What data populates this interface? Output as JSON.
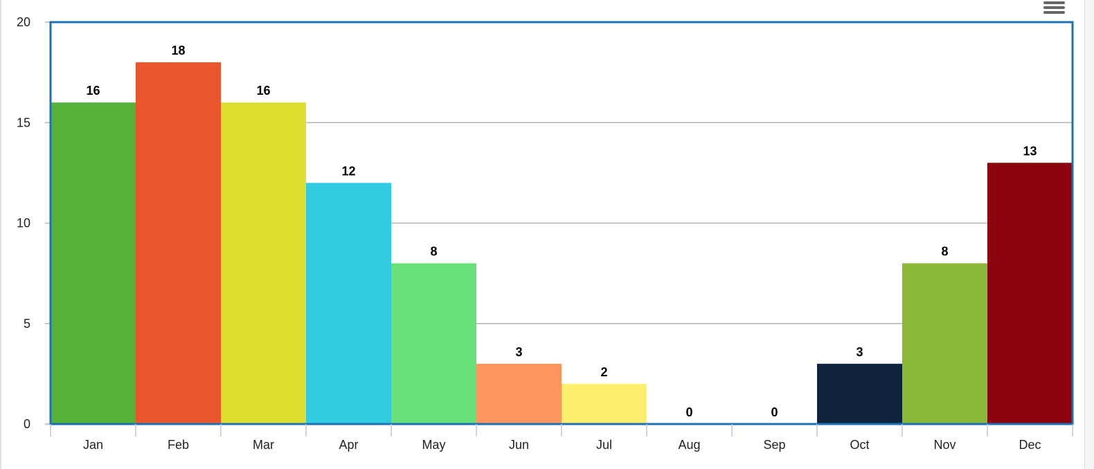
{
  "chart_data": {
    "type": "bar",
    "title": "",
    "xlabel": "",
    "ylabel": "",
    "categories": [
      "Jan",
      "Feb",
      "Mar",
      "Apr",
      "May",
      "Jun",
      "Jul",
      "Aug",
      "Sep",
      "Oct",
      "Nov",
      "Dec"
    ],
    "values": [
      16,
      18,
      16,
      12,
      8,
      3,
      2,
      0,
      0,
      3,
      8,
      13
    ],
    "data_labels": [
      "16",
      "18",
      "16",
      "12",
      "8",
      "3",
      "2",
      "0",
      "0",
      "3",
      "8",
      "13"
    ],
    "colors": [
      "#55b23b",
      "#ea562c",
      "#dcdf2f",
      "#33cbe2",
      "#68e278",
      "#fd955c",
      "#fdee6e",
      "#cccccc",
      "#cccccc",
      "#0f233a",
      "#89b936",
      "#8b030d"
    ],
    "ylim": [
      0,
      20
    ],
    "yticks": [
      "0",
      "5",
      "10",
      "15",
      "20"
    ],
    "grid": true,
    "legend": "none",
    "plot_border_color": "#1f6fb5",
    "gridline_color": "#b3b3b3"
  },
  "toolbar": {
    "menu_icon": "hamburger-menu-icon"
  }
}
